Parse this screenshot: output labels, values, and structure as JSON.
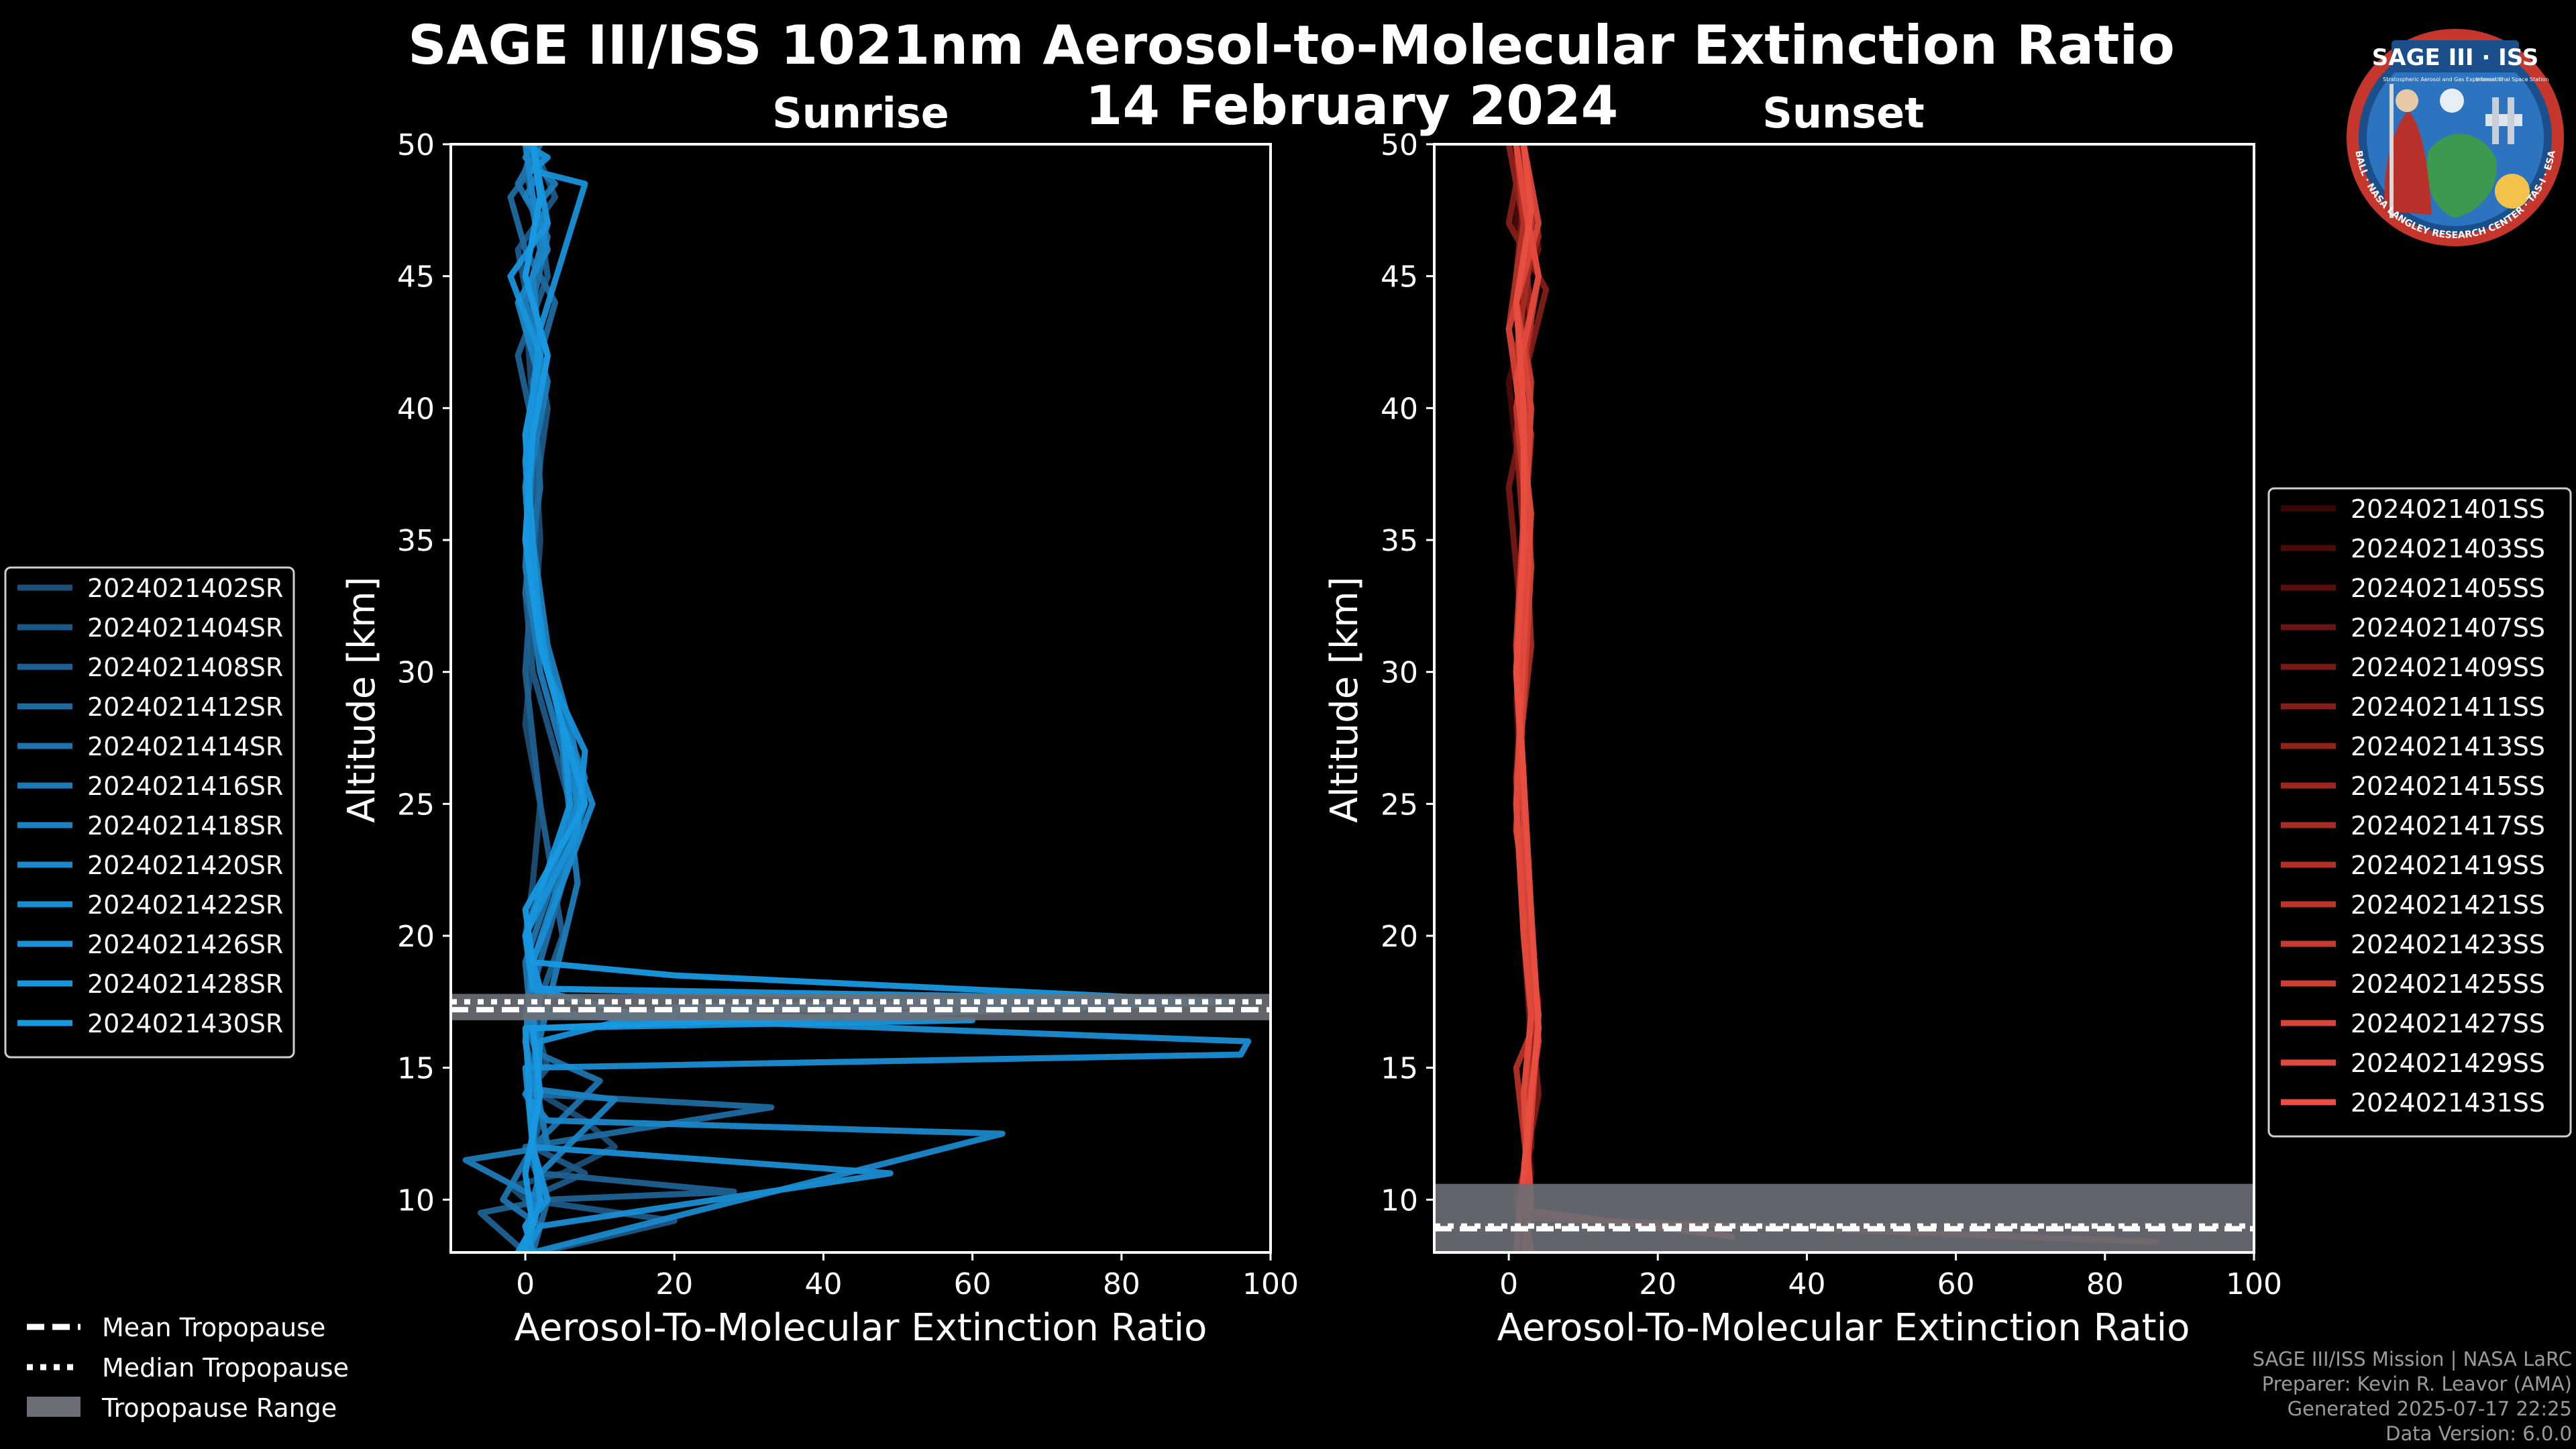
{
  "header": {
    "title": "SAGE III/ISS 1021nm Aerosol-to-Molecular Extinction Ratio",
    "date": "14 February 2024"
  },
  "badge": {
    "name": "SAGE III · ISS",
    "subtitle": "Stratospheric Aerosol and Gas Experiment III",
    "station": "International Space Station",
    "ring": "BALL · NASA LANGLEY RESEARCH CENTER · TAS-I · ESA"
  },
  "colors": {
    "background": "#000000",
    "sunrise": "#1a8fd6",
    "sunset": "#e0493a",
    "tropopause_range": "#6b6f75"
  },
  "shared_legend": {
    "mean": "Mean Tropopause",
    "median": "Median Tropopause",
    "range": "Tropopause Range"
  },
  "credits": {
    "line1": "SAGE III/ISS Mission | NASA LaRC",
    "line2": "Preparer: Kevin R. Leavor (AMA)",
    "line3": "Generated 2025-07-17 22:25",
    "line4": "Data Version: 6.0.0"
  },
  "chart_data": [
    {
      "type": "line",
      "title": "Sunrise",
      "xlabel": "Aerosol-To-Molecular Extinction Ratio",
      "ylabel": "Altitude [km]",
      "xlim": [
        -10,
        100
      ],
      "ylim": [
        8,
        50
      ],
      "xticks": [
        0,
        20,
        40,
        60,
        80,
        100
      ],
      "yticks": [
        10,
        15,
        20,
        25,
        30,
        35,
        40,
        45,
        50
      ],
      "legend_position": "left",
      "tropopause": {
        "mean": 17.2,
        "median": 17.5,
        "range": [
          16.8,
          17.8
        ]
      },
      "series": [
        {
          "name": "2024021402SR",
          "color": "#1b4f75",
          "x": [
            1,
            2,
            0,
            -2,
            5,
            12,
            8,
            2,
            1,
            2,
            1,
            0,
            1,
            2,
            0,
            1,
            2,
            1,
            0,
            3,
            1
          ],
          "y": [
            8,
            9,
            10,
            10.5,
            11,
            12,
            13,
            14,
            15,
            17,
            18,
            20,
            22,
            25,
            28,
            31,
            35,
            40,
            44,
            47,
            50
          ]
        },
        {
          "name": "2024021404SR",
          "color": "#1c5885",
          "x": [
            2,
            20,
            0,
            8,
            1,
            2,
            0,
            3,
            1,
            1,
            7,
            4,
            1,
            0,
            1,
            3,
            1,
            -1,
            4,
            1
          ],
          "y": [
            8,
            9.2,
            10,
            11,
            12,
            13,
            14,
            15,
            17,
            18,
            24,
            27,
            30,
            33,
            36,
            40,
            43,
            46,
            48,
            50
          ]
        },
        {
          "name": "2024021408SR",
          "color": "#1d6192",
          "x": [
            0,
            -6,
            3,
            28,
            2,
            1,
            2,
            0,
            5,
            2,
            0,
            1,
            2,
            -1,
            3,
            2,
            0,
            1
          ],
          "y": [
            8,
            9.5,
            10,
            10.3,
            11,
            12,
            14,
            16,
            20,
            25,
            30,
            34,
            38,
            42,
            45,
            47,
            49,
            50
          ]
        },
        {
          "name": "2024021412SR",
          "color": "#1d6a9f",
          "x": [
            1,
            3,
            0,
            33,
            1,
            2,
            0,
            6,
            7,
            3,
            0,
            2,
            1,
            4,
            0,
            -2,
            2,
            1
          ],
          "y": [
            8,
            10,
            12,
            13.5,
            14,
            15,
            17,
            23,
            26,
            30,
            33,
            37,
            41,
            44,
            46,
            48,
            49.5,
            50
          ]
        },
        {
          "name": "2024021414SR",
          "color": "#1d73ac",
          "x": [
            0,
            2,
            -3,
            1,
            10,
            2,
            1,
            0,
            6,
            8,
            4,
            1,
            0,
            2,
            1,
            3,
            -1,
            2
          ],
          "y": [
            8,
            9,
            10,
            12,
            14.5,
            15.5,
            16,
            19,
            24,
            26,
            29,
            33,
            37,
            41,
            44,
            46.5,
            48.5,
            50
          ]
        },
        {
          "name": "2024021416SR",
          "color": "#1c7bb7",
          "x": [
            1,
            0,
            2,
            -8,
            3,
            1,
            7,
            5,
            2,
            0,
            1,
            3,
            0,
            2,
            1,
            4,
            0,
            1
          ],
          "y": [
            8,
            9,
            10,
            11.5,
            12,
            15,
            22,
            27,
            30,
            34,
            38,
            41,
            44,
            46,
            47.5,
            48.5,
            49.5,
            50
          ]
        },
        {
          "name": "2024021418SR",
          "color": "#1b82c1",
          "x": [
            0,
            1,
            2,
            12,
            1,
            0,
            1,
            8,
            6,
            3,
            1,
            0,
            2,
            1,
            3,
            0,
            2,
            1
          ],
          "y": [
            8,
            10,
            11,
            13.8,
            14.2,
            16,
            19,
            25,
            28,
            31,
            35,
            39,
            42,
            45,
            47,
            48,
            49,
            50
          ]
        },
        {
          "name": "2024021420SR",
          "color": "#1a88ca",
          "x": [
            1,
            64,
            3,
            0,
            2,
            1,
            80,
            2,
            0,
            7,
            4,
            1,
            0,
            2,
            -1,
            3,
            1,
            0
          ],
          "y": [
            8,
            12.5,
            13,
            14,
            15,
            17,
            17.5,
            18,
            20,
            25,
            29,
            33,
            37,
            41,
            44,
            46,
            48,
            50
          ]
        },
        {
          "name": "2024021422SR",
          "color": "#198dd2",
          "x": [
            0,
            2,
            49,
            1,
            0,
            96,
            97,
            2,
            1,
            9,
            5,
            2,
            0,
            1,
            3,
            0,
            2,
            1
          ],
          "y": [
            8,
            9,
            11,
            12,
            15,
            15.5,
            16,
            17,
            19,
            25,
            28,
            31,
            35,
            39,
            42,
            45,
            48,
            50
          ]
        },
        {
          "name": "2024021426SR",
          "color": "#1891d8",
          "x": [
            1,
            0,
            3,
            1,
            2,
            20,
            85,
            2,
            0,
            7,
            8,
            3,
            1,
            0,
            2,
            8,
            1,
            3,
            0
          ],
          "y": [
            8,
            9,
            10,
            12,
            16,
            17.3,
            17.6,
            18,
            20,
            24,
            27,
            30,
            34,
            38,
            43,
            48.5,
            49,
            49.5,
            50
          ]
        },
        {
          "name": "2024021428SR",
          "color": "#1795dd",
          "x": [
            0,
            2,
            1,
            0,
            60,
            15,
            1,
            0,
            6,
            5,
            2,
            1,
            0,
            2,
            -2,
            3,
            1
          ],
          "y": [
            8,
            10,
            12,
            16.5,
            16.8,
            17,
            18,
            20,
            25,
            28,
            31,
            35,
            39,
            42,
            45,
            47,
            50
          ]
        },
        {
          "name": "2024021430SR",
          "color": "#1799e2",
          "x": [
            -1,
            1,
            0,
            2,
            1,
            95,
            20,
            1,
            0,
            8,
            5,
            2,
            0,
            1,
            3,
            0,
            2,
            1
          ],
          "y": [
            8,
            9,
            11,
            14,
            16.5,
            17.5,
            18.5,
            19,
            21,
            25,
            28,
            31,
            35,
            39,
            42,
            45,
            48,
            50
          ]
        }
      ]
    },
    {
      "type": "line",
      "title": "Sunset",
      "xlabel": "Aerosol-To-Molecular Extinction Ratio",
      "ylabel": "Altitude [km]",
      "xlim": [
        -10,
        100
      ],
      "ylim": [
        8,
        50
      ],
      "xticks": [
        0,
        20,
        40,
        60,
        80,
        100
      ],
      "yticks": [
        10,
        15,
        20,
        25,
        30,
        35,
        40,
        45,
        50
      ],
      "legend_position": "right",
      "tropopause": {
        "mean": 8.9,
        "median": 9.0,
        "range": [
          8.0,
          10.6
        ]
      },
      "series": [
        {
          "name": "2024021401SS",
          "color": "#3a0707",
          "x": [
            1,
            3,
            2,
            3,
            2,
            1,
            2,
            3,
            1,
            4,
            2,
            1
          ],
          "y": [
            8,
            10,
            13,
            17,
            20,
            25,
            30,
            35,
            40,
            45,
            48,
            50
          ]
        },
        {
          "name": "2024021403SS",
          "color": "#4a0b0b",
          "x": [
            2,
            2,
            3,
            4,
            2,
            1,
            3,
            2,
            0,
            3,
            1,
            2
          ],
          "y": [
            8,
            10,
            14,
            17,
            21,
            26,
            31,
            36,
            41,
            44,
            47,
            50
          ]
        },
        {
          "name": "2024021405SS",
          "color": "#5a0f0e",
          "x": [
            1,
            3,
            2,
            4,
            3,
            2,
            1,
            3,
            2,
            0,
            4,
            1
          ],
          "y": [
            8,
            11,
            14,
            16.5,
            19,
            24,
            29,
            34,
            39,
            43,
            47,
            50
          ]
        },
        {
          "name": "2024021407SS",
          "color": "#681411",
          "x": [
            3,
            2,
            3,
            4,
            2,
            2,
            1,
            2,
            3,
            1,
            4,
            2
          ],
          "y": [
            8,
            10,
            13,
            17.5,
            20,
            25,
            30,
            35,
            40,
            44,
            46,
            50
          ]
        },
        {
          "name": "2024021409SS",
          "color": "#761814",
          "x": [
            2,
            1,
            3,
            3,
            2,
            1,
            2,
            0,
            3,
            1,
            2,
            1
          ],
          "y": [
            8,
            10,
            12,
            16,
            20,
            26,
            31,
            37,
            41,
            45,
            48,
            50
          ]
        },
        {
          "name": "2024021411SS",
          "color": "#831d17",
          "x": [
            1,
            2,
            4,
            3,
            2,
            2,
            1,
            3,
            1,
            5,
            0,
            2
          ],
          "y": [
            8,
            11,
            14,
            17,
            21,
            25,
            30,
            34,
            40,
            44.5,
            47,
            50
          ]
        },
        {
          "name": "2024021413SS",
          "color": "#90221b",
          "x": [
            2,
            3,
            2,
            4,
            3,
            1,
            2,
            2,
            1,
            3,
            2,
            0
          ],
          "y": [
            8,
            10,
            13,
            16,
            20,
            24,
            29,
            35,
            39,
            43,
            47,
            50
          ]
        },
        {
          "name": "2024021415SS",
          "color": "#9c271f",
          "x": [
            3,
            2,
            3,
            4,
            2,
            2,
            1,
            2,
            3,
            1,
            4,
            2
          ],
          "y": [
            8,
            10,
            14,
            17,
            21,
            26,
            31,
            36,
            40,
            44,
            46.5,
            50
          ]
        },
        {
          "name": "2024021417SS",
          "color": "#a72c23",
          "x": [
            87,
            3,
            2,
            3,
            4,
            2,
            1,
            3,
            2,
            1,
            3,
            1
          ],
          "y": [
            8.4,
            9.3,
            11,
            14,
            17,
            21,
            26,
            31,
            37,
            42,
            46,
            50
          ]
        },
        {
          "name": "2024021419SS",
          "color": "#b23127",
          "x": [
            2,
            3,
            1,
            4,
            3,
            2,
            1,
            2,
            3,
            0,
            2,
            1
          ],
          "y": [
            8,
            10,
            15,
            17,
            20,
            25,
            30,
            35,
            39,
            43,
            47,
            50
          ]
        },
        {
          "name": "2024021421SS",
          "color": "#bc362b",
          "x": [
            1,
            2,
            3,
            4,
            2,
            1,
            2,
            3,
            1,
            4,
            2,
            1
          ],
          "y": [
            8,
            11,
            14,
            16.5,
            20,
            25,
            30,
            34,
            40,
            45,
            48,
            50
          ]
        },
        {
          "name": "2024021423SS",
          "color": "#c63b30",
          "x": [
            2,
            3,
            2,
            3,
            2,
            2,
            1,
            2,
            3,
            1,
            3,
            2
          ],
          "y": [
            8,
            10,
            13,
            17,
            21,
            26,
            31,
            36,
            41,
            44,
            47,
            50
          ]
        },
        {
          "name": "2024021425SS",
          "color": "#cf4034",
          "x": [
            3,
            2,
            3,
            4,
            3,
            1,
            2,
            3,
            2,
            0,
            3,
            1
          ],
          "y": [
            8,
            10,
            14,
            16,
            20,
            24,
            29,
            34,
            39,
            43,
            46,
            50
          ]
        },
        {
          "name": "2024021427SS",
          "color": "#d84538",
          "x": [
            30,
            2,
            3,
            4,
            2,
            2,
            1,
            2,
            3,
            1,
            4,
            2
          ],
          "y": [
            8.6,
            9.6,
            13,
            17,
            21,
            25,
            30,
            35,
            40,
            44,
            47,
            50
          ]
        },
        {
          "name": "2024021429SS",
          "color": "#e04a3c",
          "x": [
            2,
            3,
            2,
            3,
            2,
            1,
            2,
            3,
            1,
            4,
            2,
            1
          ],
          "y": [
            8,
            10,
            14,
            17,
            20,
            25,
            31,
            36,
            41,
            45,
            48,
            50
          ]
        },
        {
          "name": "2024021431SS",
          "color": "#e84f40",
          "x": [
            1,
            2,
            3,
            4,
            3,
            2,
            1,
            2,
            2,
            1,
            3,
            2
          ],
          "y": [
            8,
            11,
            14,
            16.5,
            21,
            26,
            30,
            35,
            40,
            44,
            47.5,
            50
          ]
        }
      ]
    }
  ]
}
